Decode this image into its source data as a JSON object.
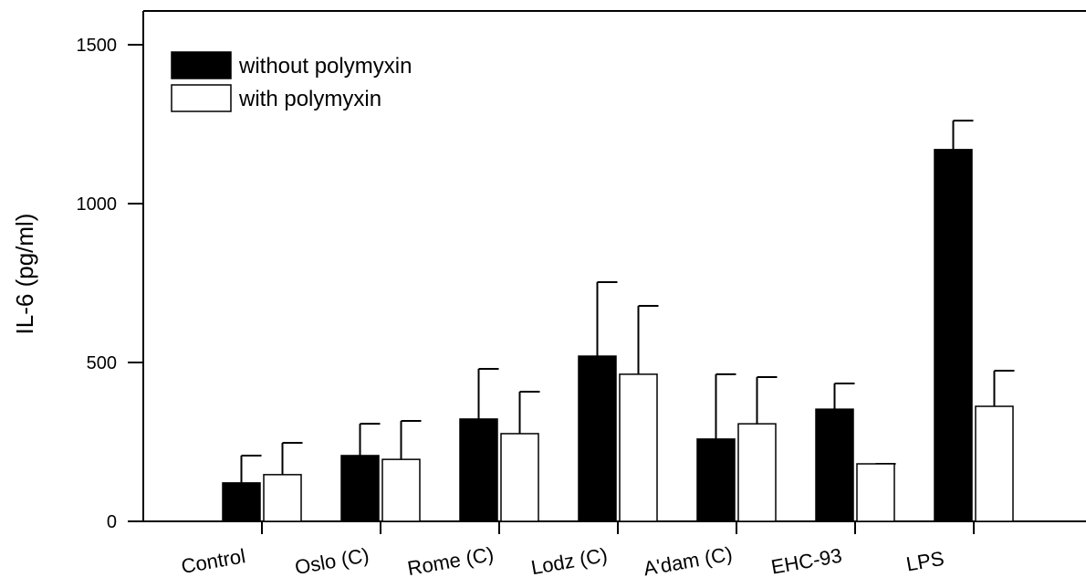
{
  "chart_data": {
    "type": "bar",
    "y_label": "IL-6 (pg/ml)",
    "categories": [
      "Control",
      "Oslo (C)",
      "Rome (C)",
      "Lodz (C)",
      "A'dam (C)",
      "EHC-93",
      "LPS"
    ],
    "series": [
      {
        "name": "without polymyxin",
        "color": "#000000",
        "values": [
          121,
          207,
          322,
          520,
          259,
          353,
          1170
        ],
        "errors": [
          86,
          100,
          158,
          233,
          204,
          81,
          91
        ]
      },
      {
        "name": "with polymyxin",
        "color": "#ffffff",
        "values": [
          147,
          195,
          276,
          463,
          307,
          181,
          362
        ],
        "errors": [
          100,
          121,
          132,
          215,
          147,
          0,
          112
        ]
      }
    ],
    "ylim": [
      0,
      1500
    ],
    "yticks": [
      0,
      500,
      1000,
      1500
    ]
  }
}
